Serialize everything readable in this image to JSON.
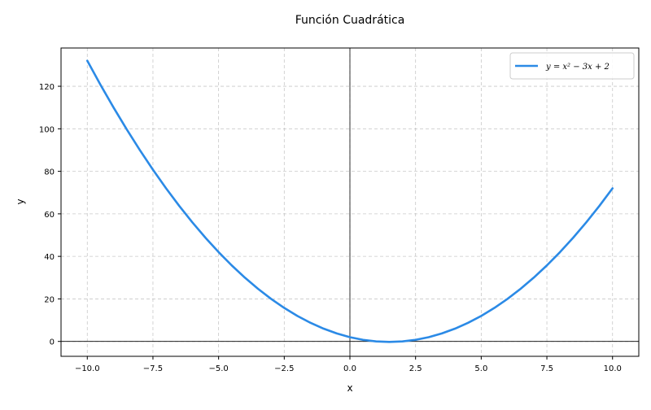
{
  "chart_data": {
    "type": "line",
    "title": "Función Cuadrática",
    "xlabel": "x",
    "ylabel": "y",
    "xlim": [
      -11,
      11
    ],
    "ylim": [
      -7,
      138
    ],
    "xticks": [
      -10.0,
      -7.5,
      -5.0,
      -2.5,
      0.0,
      2.5,
      5.0,
      7.5,
      10.0
    ],
    "xtick_labels": [
      "−10.0",
      "−7.5",
      "−5.0",
      "−2.5",
      "0.0",
      "2.5",
      "5.0",
      "7.5",
      "10.0"
    ],
    "yticks": [
      0,
      20,
      40,
      60,
      80,
      100,
      120
    ],
    "ytick_labels": [
      "0",
      "20",
      "40",
      "60",
      "80",
      "100",
      "120"
    ],
    "grid": true,
    "legend_position": "top-right",
    "reference_lines": {
      "x": 0,
      "y": 0
    },
    "series": [
      {
        "name": "y = x² − 3x + 2",
        "color": "#2b8ae6",
        "x": [
          -10,
          -9.5,
          -9,
          -8.5,
          -8,
          -7.5,
          -7,
          -6.5,
          -6,
          -5.5,
          -5,
          -4.5,
          -4,
          -3.5,
          -3,
          -2.5,
          -2,
          -1.5,
          -1,
          -0.5,
          0,
          0.5,
          1,
          1.5,
          2,
          2.5,
          3,
          3.5,
          4,
          4.5,
          5,
          5.5,
          6,
          6.5,
          7,
          7.5,
          8,
          8.5,
          9,
          9.5,
          10
        ],
        "y": [
          132,
          120.75,
          110,
          99.75,
          90,
          80.75,
          72,
          63.75,
          56,
          48.75,
          42,
          35.75,
          30,
          24.75,
          20,
          15.75,
          12,
          8.75,
          6,
          3.75,
          2,
          0.75,
          0,
          -0.25,
          0,
          0.75,
          2,
          3.75,
          6,
          8.75,
          12,
          15.75,
          20,
          24.75,
          30,
          35.75,
          42,
          48.75,
          56,
          63.75,
          72
        ]
      }
    ]
  }
}
